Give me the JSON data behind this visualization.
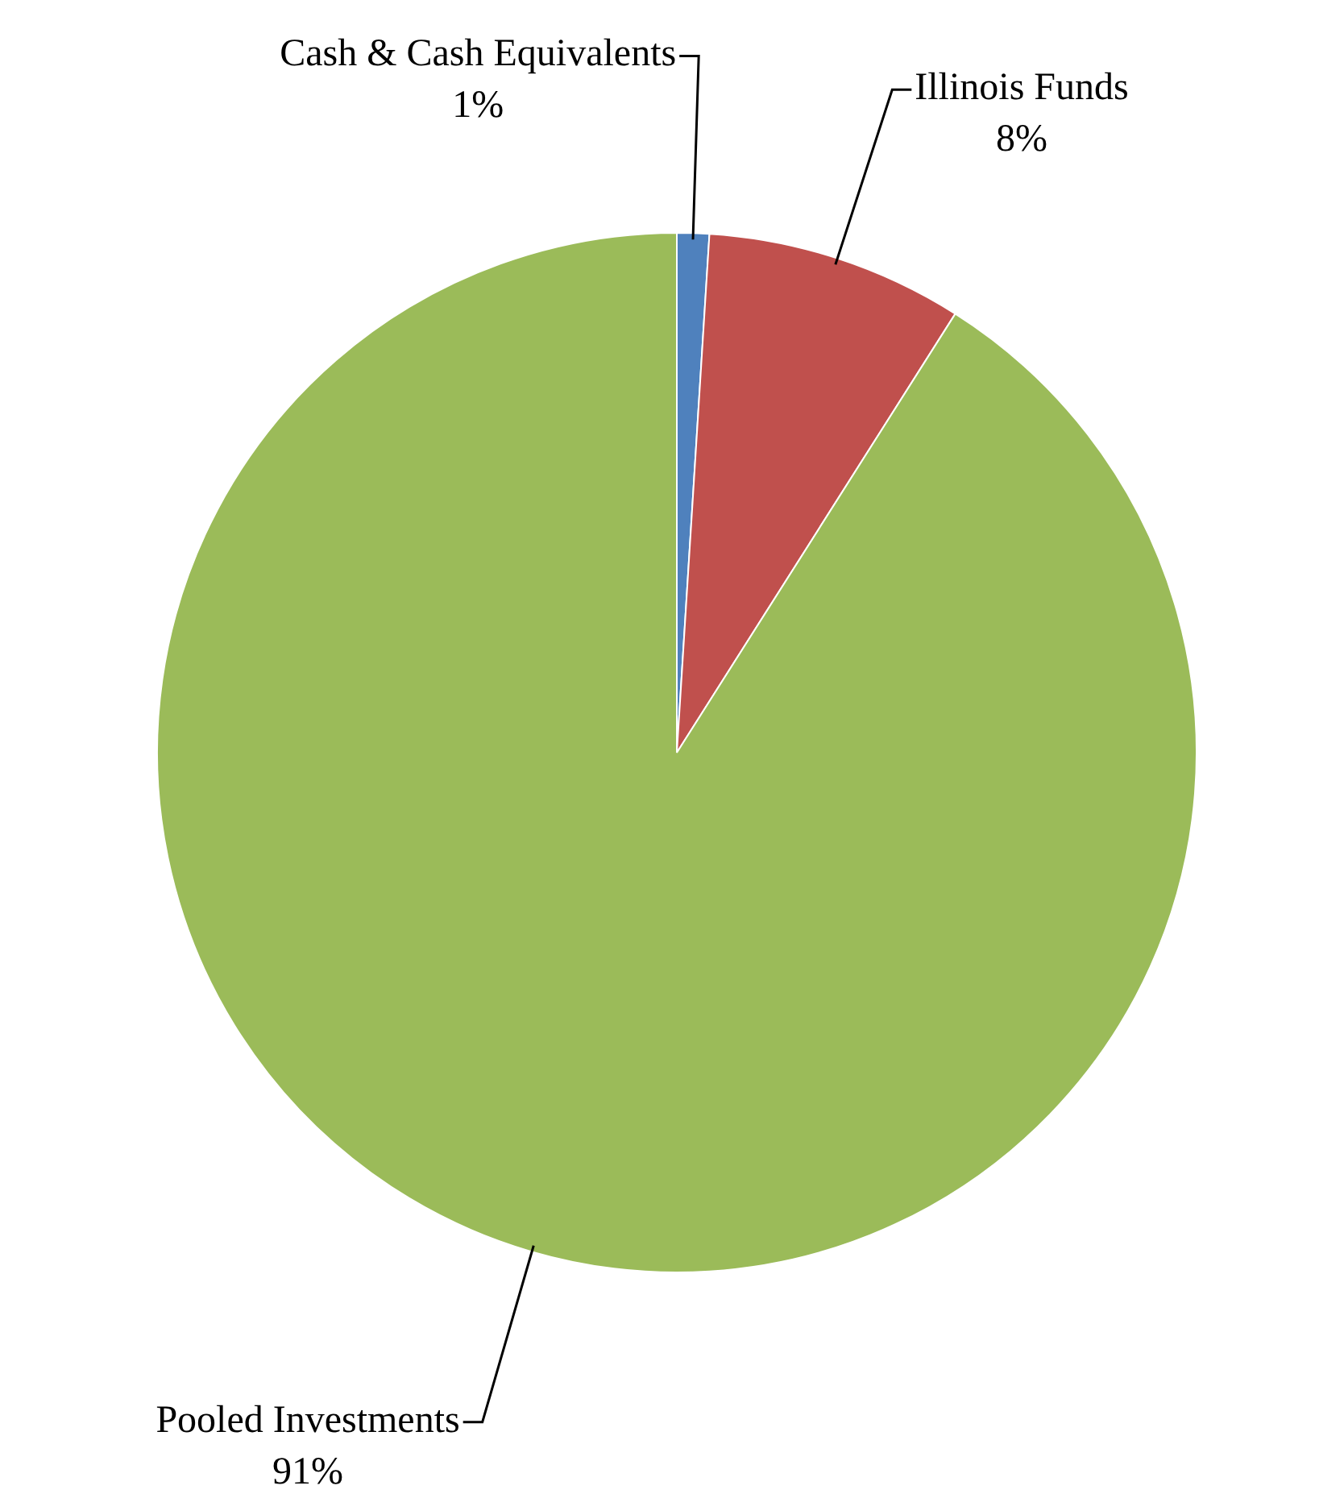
{
  "chart_data": {
    "type": "pie",
    "categories": [
      "Cash & Cash Equivalents",
      "Illinois Funds",
      "Pooled Investments"
    ],
    "values": [
      1,
      8,
      91
    ],
    "colors": [
      "#4f81bd",
      "#c0504d",
      "#9bbb59"
    ],
    "value_labels": [
      "1%",
      "8%",
      "91%"
    ],
    "legend": false
  }
}
